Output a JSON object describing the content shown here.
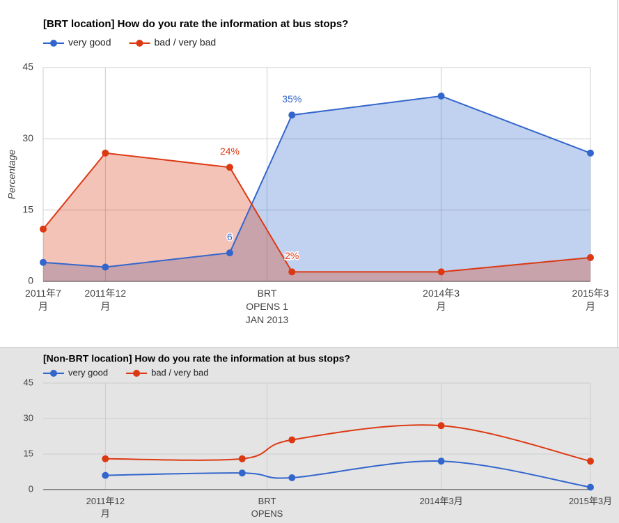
{
  "chart_data": [
    {
      "type": "area",
      "title": "[BRT location] How do you rate the information at bus stops?",
      "y_label": "Percentage",
      "x": [
        "2011-07",
        "2011-12",
        "2012-10",
        "2013-03",
        "2014-03",
        "2015-03"
      ],
      "xlim": [
        "2011-07",
        "2015-03"
      ],
      "xticks": [
        {
          "value": "2011-07",
          "label": "2011年7月"
        },
        {
          "value": "2011-12",
          "label": "2011年12月"
        },
        {
          "value": "2013-01",
          "label": "BRT OPENS 1 JAN 2013"
        },
        {
          "value": "2014-03",
          "label": "2014年3月"
        },
        {
          "value": "2015-03",
          "label": "2015年3月"
        }
      ],
      "ylim": [
        0,
        45
      ],
      "yticks": [
        0,
        15,
        30,
        45
      ],
      "grid": true,
      "legend": "top",
      "series": [
        {
          "name": "very good",
          "color": "#3366cc",
          "values": [
            4,
            3,
            6,
            35,
            39,
            27
          ],
          "value_labels": [
            null,
            null,
            "6",
            "35%",
            null,
            null
          ]
        },
        {
          "name": "bad / very bad",
          "color": "#dc3912",
          "values": [
            11,
            27,
            24,
            2,
            2,
            5
          ],
          "value_labels": [
            null,
            null,
            "24%",
            "2%",
            null,
            null
          ]
        }
      ]
    },
    {
      "type": "line",
      "smooth": true,
      "title": "[Non-BRT location] How do you rate the information at bus stops?",
      "x": [
        "2011-12",
        "2012-11",
        "2013-03",
        "2014-03",
        "2015-03"
      ],
      "xlim": [
        "2011-07",
        "2015-03"
      ],
      "xticks": [
        {
          "value": "2011-12",
          "label": "2011年12月"
        },
        {
          "value": "2013-01",
          "label": "BRT OPENS"
        },
        {
          "value": "2014-03",
          "label": "2014年3月"
        },
        {
          "value": "2015-03",
          "label": "2015年3月"
        }
      ],
      "ylim": [
        0,
        45
      ],
      "yticks": [
        0,
        15,
        30,
        45
      ],
      "grid": true,
      "legend": "top",
      "series": [
        {
          "name": "very good",
          "color": "#3366cc",
          "values": [
            6,
            7,
            5,
            12,
            1
          ]
        },
        {
          "name": "bad / very bad",
          "color": "#dc3912",
          "values": [
            13,
            13,
            21,
            27,
            12
          ]
        }
      ]
    }
  ]
}
